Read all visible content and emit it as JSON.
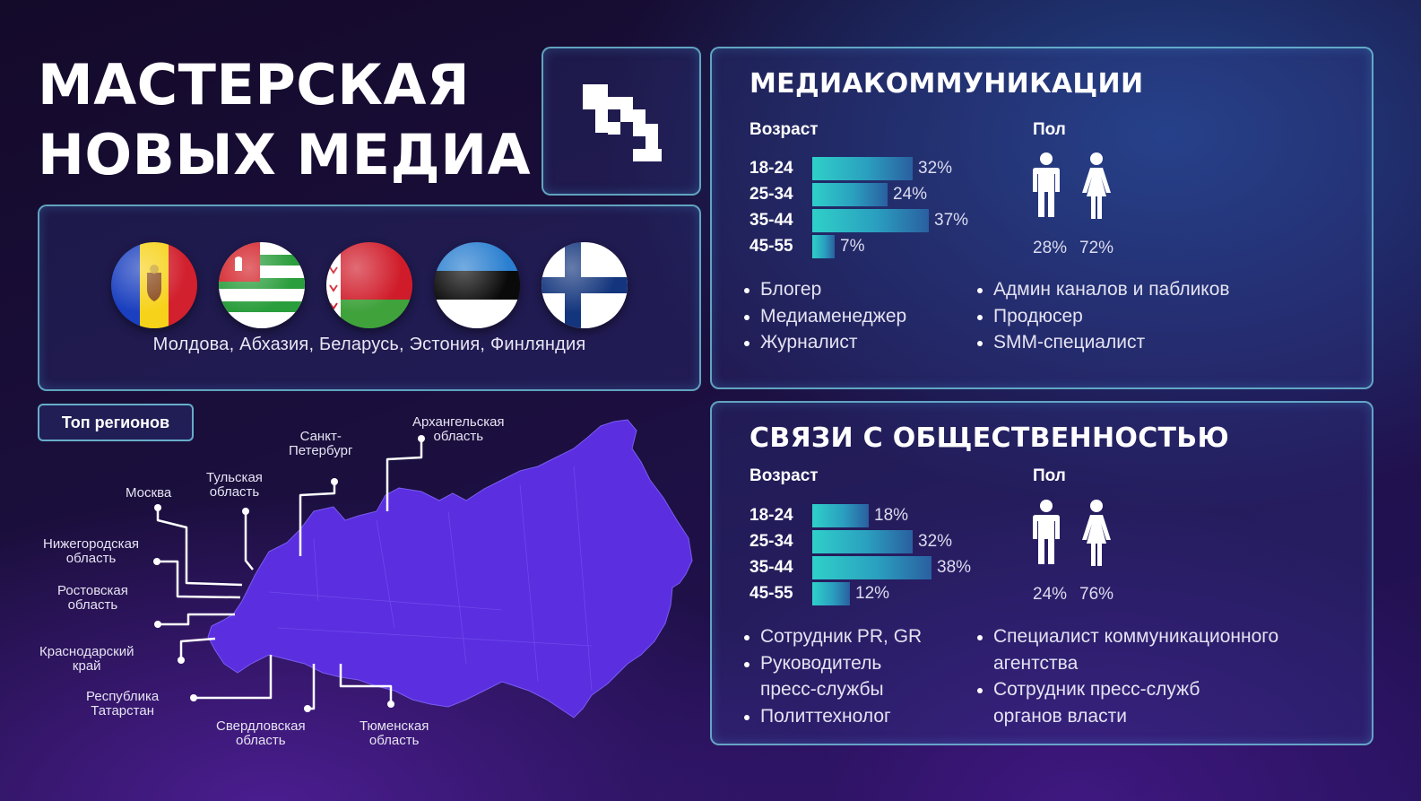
{
  "title": {
    "line1": "МАСТЕРСКАЯ",
    "line2": "НОВЫХ МЕДИА"
  },
  "countries": {
    "flags": [
      "moldova-flag-icon",
      "abkhazia-flag-icon",
      "belarus-flag-icon",
      "estonia-flag-icon",
      "finland-flag-icon"
    ],
    "caption": "Молдова, Абхазия, Беларусь, Эстония, Финляндия"
  },
  "regions": {
    "badge": "Топ регионов",
    "labels": {
      "moscow": "Москва",
      "tula": "Тульская\nобласть",
      "spb": "Санкт-\nПетербург",
      "arkhangelsk": "Архангельская\nобласть",
      "nizhny": "Нижегородская\nобласть",
      "rostov": "Ростовская\nобласть",
      "krasnodar": "Краснодарский\nкрай",
      "tatarstan": "Республика\nТатарстан",
      "sverdlovsk": "Свердловская\nобласть",
      "tyumen": "Тюменская\nобласть"
    }
  },
  "colors": {
    "accent_teal": "#2fd0c9",
    "map_purple": "#5b2ee0",
    "panel_border": "#78d2e6"
  },
  "media": {
    "title": "МЕДИАКОММУНИКАЦИИ",
    "age_label": "Возраст",
    "gender_label": "Пол",
    "age": [
      {
        "range": "18-24",
        "pct": 32,
        "label": "32%"
      },
      {
        "range": "25-34",
        "pct": 24,
        "label": "24%"
      },
      {
        "range": "35-44",
        "pct": 37,
        "label": "37%"
      },
      {
        "range": "45-55",
        "pct": 7,
        "label": "7%"
      }
    ],
    "gender": {
      "male": "28%",
      "female": "72%"
    },
    "roles_left": [
      "Блогер",
      "Медиаменеджер",
      "Журналист"
    ],
    "roles_right": [
      "Админ каналов и пабликов",
      "Продюсер",
      "SMM-специалист"
    ]
  },
  "pr": {
    "title": "СВЯЗИ С ОБЩЕСТВЕННОСТЬЮ",
    "age_label": "Возраст",
    "gender_label": "Пол",
    "age": [
      {
        "range": "18-24",
        "pct": 18,
        "label": "18%"
      },
      {
        "range": "25-34",
        "pct": 32,
        "label": "32%"
      },
      {
        "range": "35-44",
        "pct": 38,
        "label": "38%"
      },
      {
        "range": "45-55",
        "pct": 12,
        "label": "12%"
      }
    ],
    "gender": {
      "male": "24%",
      "female": "76%"
    },
    "roles_left": [
      "Сотрудник PR, GR",
      "Руководитель",
      "пресс-службы",
      "Политтехнолог"
    ],
    "roles_right": [
      "Специалист коммуникационного",
      "агентства",
      "Сотрудник пресс-служб",
      "органов власти"
    ]
  }
}
